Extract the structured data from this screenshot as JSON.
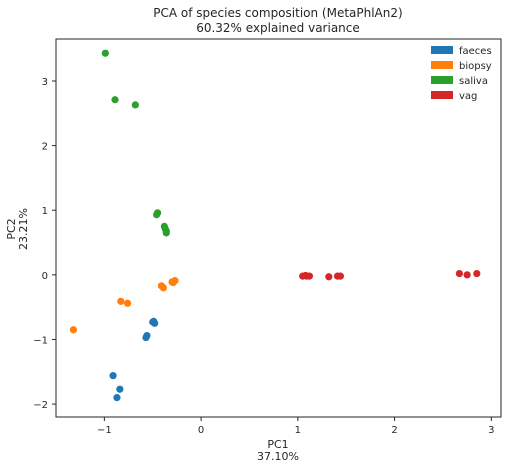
{
  "chart_data": {
    "type": "scatter",
    "title": "PCA of species composition (MetaPhlAn2)",
    "subtitle": "60.32% explained variance",
    "xlabel": "PC1",
    "xlabel_sub": "37.10%",
    "ylabel": "PC2",
    "ylabel_sub": "23.21%",
    "xlim": [
      -1.5,
      3.1
    ],
    "ylim": [
      -2.2,
      3.65
    ],
    "xticks": [
      -1,
      0,
      1,
      2,
      3
    ],
    "xtick_labels": [
      "−1",
      "0",
      "1",
      "2",
      "3"
    ],
    "yticks": [
      -2,
      -1,
      0,
      1,
      2,
      3
    ],
    "ytick_labels": [
      "−2",
      "−1",
      "0",
      "1",
      "2",
      "3"
    ],
    "grid": false,
    "legend_position": "top-right",
    "series": [
      {
        "name": "faeces",
        "color": "#1f77b4",
        "points": [
          [
            -0.91,
            -1.56
          ],
          [
            -0.84,
            -1.77
          ],
          [
            -0.87,
            -1.9
          ],
          [
            -0.56,
            -0.94
          ],
          [
            -0.57,
            -0.97
          ],
          [
            -0.49,
            -0.72
          ],
          [
            -0.48,
            -0.75
          ],
          [
            -0.5,
            -0.73
          ]
        ]
      },
      {
        "name": "biopsy",
        "color": "#ff7f0e",
        "points": [
          [
            -1.32,
            -0.85
          ],
          [
            -0.83,
            -0.41
          ],
          [
            -0.76,
            -0.44
          ],
          [
            -0.41,
            -0.17
          ],
          [
            -0.39,
            -0.2
          ],
          [
            -0.3,
            -0.11
          ],
          [
            -0.27,
            -0.09
          ],
          [
            -0.29,
            -0.12
          ]
        ]
      },
      {
        "name": "saliva",
        "color": "#2ca02c",
        "points": [
          [
            -0.99,
            3.43
          ],
          [
            -0.89,
            2.71
          ],
          [
            -0.68,
            2.63
          ],
          [
            -0.45,
            0.96
          ],
          [
            -0.46,
            0.93
          ],
          [
            -0.38,
            0.75
          ],
          [
            -0.36,
            0.68
          ],
          [
            -0.37,
            0.71
          ],
          [
            -0.36,
            0.65
          ]
        ]
      },
      {
        "name": "vag",
        "color": "#d62728",
        "points": [
          [
            1.05,
            -0.02
          ],
          [
            1.08,
            -0.01
          ],
          [
            1.12,
            -0.02
          ],
          [
            1.09,
            -0.02
          ],
          [
            1.32,
            -0.03
          ],
          [
            1.41,
            -0.02
          ],
          [
            1.44,
            -0.02
          ],
          [
            2.67,
            0.02
          ],
          [
            2.75,
            0.0
          ],
          [
            2.85,
            0.02
          ]
        ]
      }
    ]
  }
}
